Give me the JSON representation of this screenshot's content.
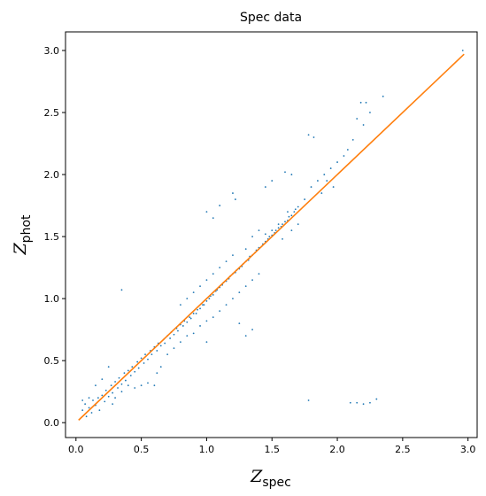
{
  "chart_data": {
    "type": "scatter",
    "title": "Spec data",
    "xlabel": {
      "main": "Z",
      "sub": "spec"
    },
    "ylabel": {
      "main": "Z",
      "sub": "phot"
    },
    "xlim": [
      -0.08,
      3.07
    ],
    "ylim": [
      -0.12,
      3.15
    ],
    "xticks": [
      0.0,
      0.5,
      1.0,
      1.5,
      2.0,
      2.5,
      3.0
    ],
    "xtick_labels": [
      "0.0",
      "0.5",
      "1.0",
      "1.5",
      "2.0",
      "2.5",
      "3.0"
    ],
    "yticks": [
      0.0,
      0.5,
      1.0,
      1.5,
      2.0,
      2.5,
      3.0
    ],
    "ytick_labels": [
      "0.0",
      "0.5",
      "1.0",
      "1.5",
      "2.0",
      "2.5",
      "3.0"
    ],
    "grid": false,
    "legend": "none",
    "series": [
      {
        "type": "scatter",
        "color": "#1f77b4",
        "points": [
          [
            0.05,
            0.1
          ],
          [
            0.07,
            0.15
          ],
          [
            0.08,
            0.05
          ],
          [
            0.1,
            0.12
          ],
          [
            0.12,
            0.08
          ],
          [
            0.13,
            0.18
          ],
          [
            0.15,
            0.14
          ],
          [
            0.17,
            0.2
          ],
          [
            0.18,
            0.1
          ],
          [
            0.2,
            0.22
          ],
          [
            0.22,
            0.17
          ],
          [
            0.23,
            0.26
          ],
          [
            0.25,
            0.21
          ],
          [
            0.27,
            0.3
          ],
          [
            0.28,
            0.24
          ],
          [
            0.3,
            0.33
          ],
          [
            0.32,
            0.28
          ],
          [
            0.33,
            0.36
          ],
          [
            0.35,
            0.31
          ],
          [
            0.37,
            0.4
          ],
          [
            0.38,
            0.34
          ],
          [
            0.4,
            0.42
          ],
          [
            0.42,
            0.38
          ],
          [
            0.43,
            0.45
          ],
          [
            0.45,
            0.41
          ],
          [
            0.47,
            0.49
          ],
          [
            0.48,
            0.44
          ],
          [
            0.5,
            0.52
          ],
          [
            0.52,
            0.48
          ],
          [
            0.53,
            0.55
          ],
          [
            0.55,
            0.51
          ],
          [
            0.57,
            0.58
          ],
          [
            0.58,
            0.55
          ],
          [
            0.6,
            0.61
          ],
          [
            0.62,
            0.58
          ],
          [
            0.63,
            0.64
          ],
          [
            0.65,
            0.62
          ],
          [
            0.67,
            0.67
          ],
          [
            0.68,
            0.64
          ],
          [
            0.7,
            0.7
          ],
          [
            0.72,
            0.68
          ],
          [
            0.73,
            0.73
          ],
          [
            0.75,
            0.71
          ],
          [
            0.77,
            0.76
          ],
          [
            0.78,
            0.74
          ],
          [
            0.8,
            0.79
          ],
          [
            0.82,
            0.78
          ],
          [
            0.83,
            0.82
          ],
          [
            0.85,
            0.81
          ],
          [
            0.87,
            0.85
          ],
          [
            0.88,
            0.84
          ],
          [
            0.9,
            0.88
          ],
          [
            0.92,
            0.88
          ],
          [
            0.93,
            0.91
          ],
          [
            0.95,
            0.92
          ],
          [
            0.97,
            0.95
          ],
          [
            0.98,
            0.95
          ],
          [
            1.0,
            0.98
          ],
          [
            1.02,
            1.0
          ],
          [
            1.03,
            1.02
          ],
          [
            1.05,
            1.03
          ],
          [
            1.07,
            1.06
          ],
          [
            1.08,
            1.07
          ],
          [
            1.1,
            1.09
          ],
          [
            1.12,
            1.11
          ],
          [
            1.13,
            1.13
          ],
          [
            1.15,
            1.14
          ],
          [
            1.17,
            1.16
          ],
          [
            1.18,
            1.18
          ],
          [
            1.2,
            1.2
          ],
          [
            1.22,
            1.21
          ],
          [
            1.23,
            1.23
          ],
          [
            1.25,
            1.24
          ],
          [
            1.27,
            1.26
          ],
          [
            1.28,
            1.28
          ],
          [
            1.3,
            1.3
          ],
          [
            1.32,
            1.31
          ],
          [
            1.33,
            1.34
          ],
          [
            1.35,
            1.35
          ],
          [
            1.37,
            1.37
          ],
          [
            1.38,
            1.39
          ],
          [
            1.4,
            1.41
          ],
          [
            1.42,
            1.42
          ],
          [
            1.43,
            1.44
          ],
          [
            1.45,
            1.46
          ],
          [
            1.47,
            1.48
          ],
          [
            1.48,
            1.5
          ],
          [
            1.5,
            1.51
          ],
          [
            1.52,
            1.53
          ],
          [
            1.53,
            1.55
          ],
          [
            1.55,
            1.57
          ],
          [
            1.57,
            1.58
          ],
          [
            1.58,
            1.6
          ],
          [
            1.6,
            1.62
          ],
          [
            1.62,
            1.63
          ],
          [
            1.63,
            1.66
          ],
          [
            1.65,
            1.67
          ],
          [
            1.67,
            1.7
          ],
          [
            1.68,
            1.72
          ],
          [
            1.7,
            1.74
          ],
          [
            0.15,
            0.3
          ],
          [
            0.2,
            0.35
          ],
          [
            0.25,
            0.45
          ],
          [
            0.28,
            0.15
          ],
          [
            0.3,
            0.2
          ],
          [
            0.35,
            0.25
          ],
          [
            0.4,
            0.3
          ],
          [
            0.45,
            0.28
          ],
          [
            0.5,
            0.3
          ],
          [
            0.55,
            0.32
          ],
          [
            0.6,
            0.3
          ],
          [
            0.62,
            0.4
          ],
          [
            0.65,
            0.45
          ],
          [
            0.7,
            0.55
          ],
          [
            0.75,
            0.6
          ],
          [
            0.8,
            0.65
          ],
          [
            0.85,
            0.7
          ],
          [
            0.9,
            0.72
          ],
          [
            0.95,
            0.78
          ],
          [
            1.0,
            0.82
          ],
          [
            1.05,
            0.85
          ],
          [
            1.1,
            0.9
          ],
          [
            1.15,
            0.95
          ],
          [
            1.2,
            1.0
          ],
          [
            1.25,
            1.05
          ],
          [
            1.3,
            1.1
          ],
          [
            1.35,
            1.15
          ],
          [
            1.4,
            1.2
          ],
          [
            0.8,
            0.95
          ],
          [
            0.85,
            1.0
          ],
          [
            0.9,
            1.05
          ],
          [
            0.95,
            1.1
          ],
          [
            1.0,
            1.15
          ],
          [
            1.05,
            1.2
          ],
          [
            1.1,
            1.25
          ],
          [
            1.15,
            1.3
          ],
          [
            1.2,
            1.35
          ],
          [
            1.3,
            1.4
          ],
          [
            1.35,
            1.5
          ],
          [
            1.4,
            1.55
          ],
          [
            1.45,
            1.52
          ],
          [
            1.5,
            1.55
          ],
          [
            1.55,
            1.6
          ],
          [
            1.58,
            1.48
          ],
          [
            1.62,
            1.7
          ],
          [
            1.65,
            1.55
          ],
          [
            1.7,
            1.6
          ],
          [
            1.75,
            1.8
          ],
          [
            1.8,
            1.9
          ],
          [
            1.85,
            1.95
          ],
          [
            1.9,
            2.0
          ],
          [
            1.95,
            2.05
          ],
          [
            1.88,
            1.85
          ],
          [
            1.92,
            1.95
          ],
          [
            1.97,
            1.9
          ],
          [
            2.0,
            2.1
          ],
          [
            2.05,
            2.15
          ],
          [
            2.08,
            2.2
          ],
          [
            2.12,
            2.28
          ],
          [
            1.78,
            2.32
          ],
          [
            1.82,
            2.3
          ],
          [
            2.15,
            2.45
          ],
          [
            2.18,
            2.58
          ],
          [
            2.22,
            2.58
          ],
          [
            2.2,
            2.4
          ],
          [
            2.25,
            2.5
          ],
          [
            2.35,
            2.63
          ],
          [
            1.2,
            1.85
          ],
          [
            1.22,
            1.8
          ],
          [
            1.1,
            1.75
          ],
          [
            1.05,
            1.65
          ],
          [
            1.0,
            1.7
          ],
          [
            0.35,
            1.07
          ],
          [
            1.45,
            1.9
          ],
          [
            1.5,
            1.95
          ],
          [
            1.6,
            2.02
          ],
          [
            1.65,
            2.0
          ],
          [
            1.0,
            0.65
          ],
          [
            1.78,
            0.18
          ],
          [
            2.1,
            0.16
          ],
          [
            2.15,
            0.16
          ],
          [
            2.2,
            0.15
          ],
          [
            2.25,
            0.16
          ],
          [
            2.3,
            0.19
          ],
          [
            2.96,
            3.0
          ],
          [
            1.3,
            0.7
          ],
          [
            1.35,
            0.75
          ],
          [
            1.25,
            0.8
          ],
          [
            0.05,
            0.18
          ],
          [
            0.1,
            0.2
          ]
        ]
      },
      {
        "type": "line",
        "color": "#ff7f0e",
        "x": [
          0.02,
          2.97
        ],
        "y": [
          0.02,
          2.97
        ]
      }
    ]
  }
}
